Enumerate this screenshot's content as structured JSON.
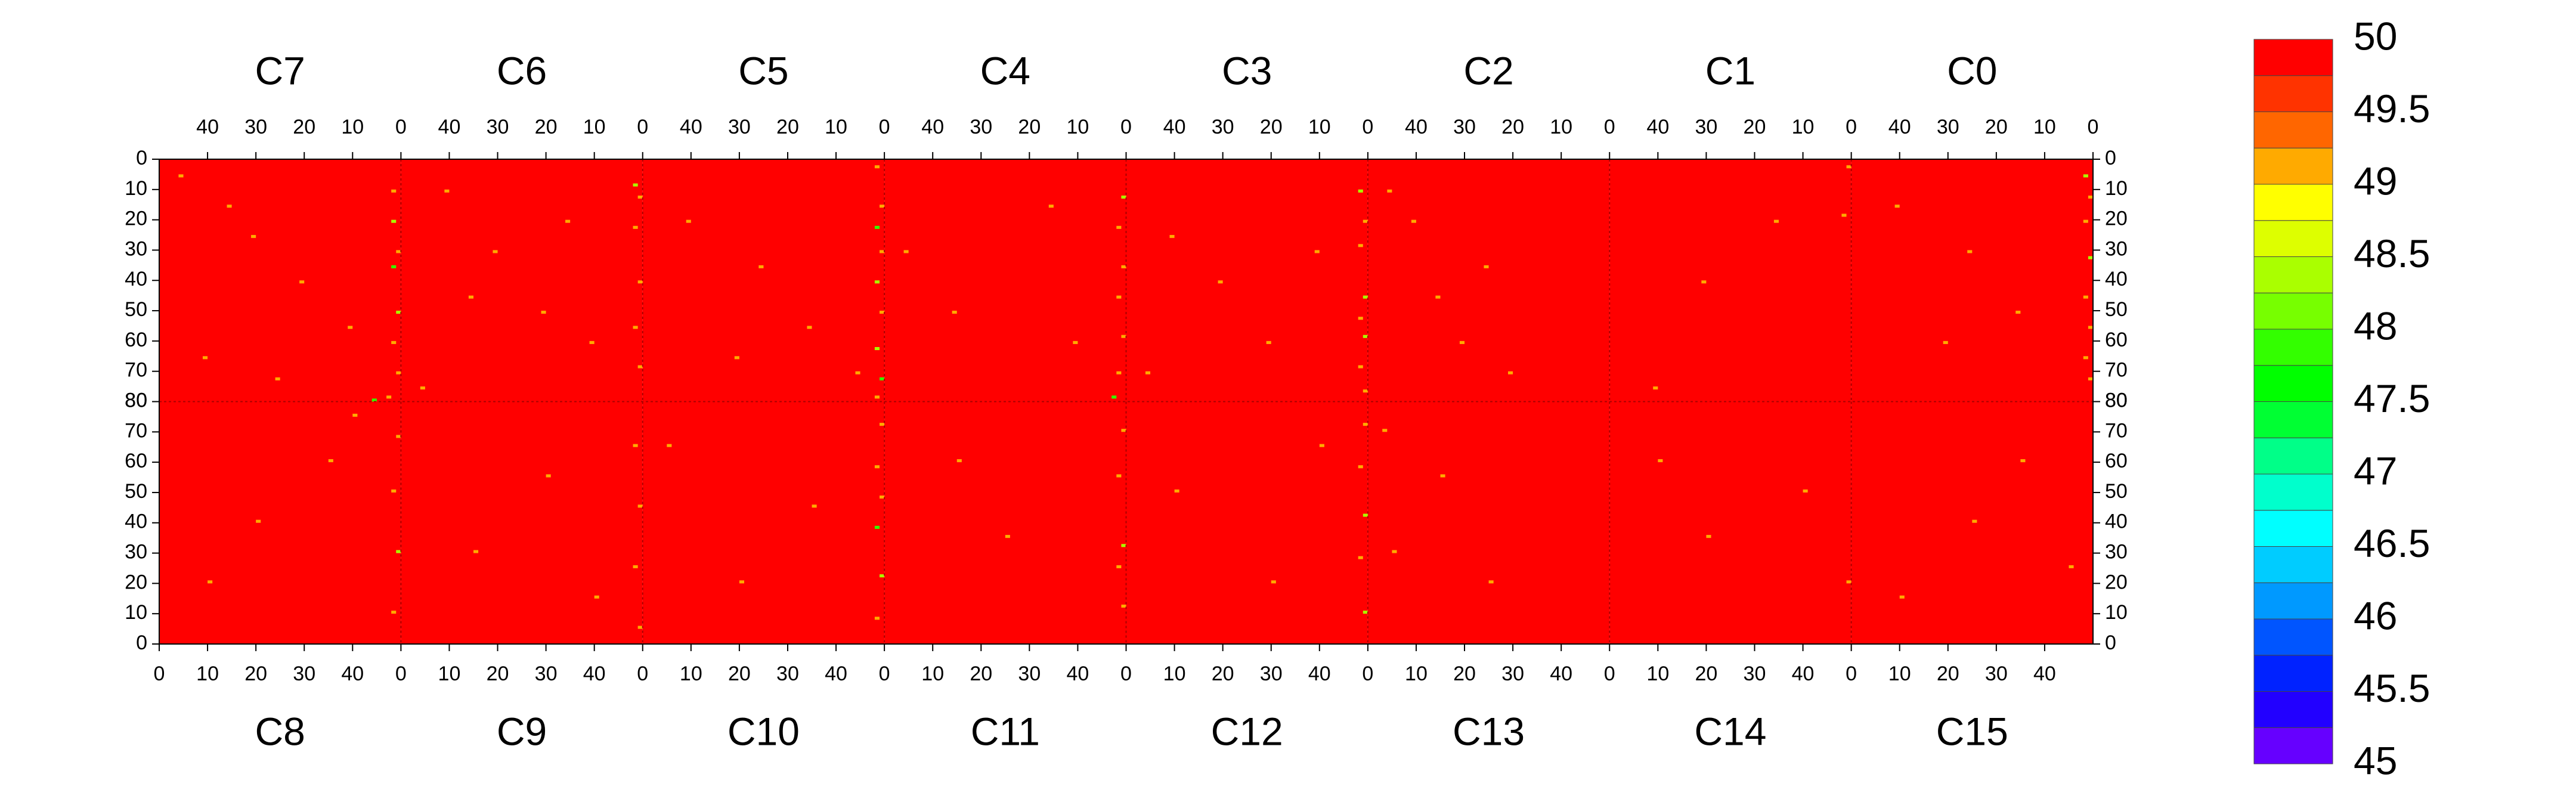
{
  "chart_data": {
    "type": "heatmap",
    "top_xlim": [
      50,
      0
    ],
    "top_xticks": [
      40,
      30,
      20,
      10,
      0
    ],
    "bottom_xlim": [
      0,
      50
    ],
    "bottom_xticks": [
      0,
      10,
      20,
      30,
      40
    ],
    "ylim": [
      0,
      80
    ],
    "yticks": [
      0,
      10,
      20,
      30,
      40,
      50,
      60,
      70,
      80
    ],
    "top_panels": [
      {
        "name": "C7",
        "base": 50,
        "cells": [
          [
            1,
            10,
            49.1
          ],
          [
            1,
            20,
            48.4
          ],
          [
            0,
            30,
            49.1
          ],
          [
            1,
            35,
            47.9
          ],
          [
            0,
            50,
            48.4
          ],
          [
            1,
            60,
            49.1
          ],
          [
            0,
            70,
            49.1
          ],
          [
            2,
            78,
            49.1
          ],
          [
            45,
            5,
            49.1
          ],
          [
            30,
            25,
            49.1
          ],
          [
            20,
            40,
            49.1
          ],
          [
            10,
            55,
            49.1
          ],
          [
            40,
            65,
            49.1
          ],
          [
            25,
            72,
            49.1
          ],
          [
            35,
            15,
            49.1
          ],
          [
            5,
            79,
            47.9
          ]
        ]
      },
      {
        "name": "C6",
        "base": 50,
        "cells": [
          [
            1,
            8,
            48.4
          ],
          [
            0,
            12,
            49.1
          ],
          [
            1,
            22,
            49.1
          ],
          [
            0,
            40,
            49.1
          ],
          [
            1,
            55,
            49.1
          ],
          [
            0,
            68,
            49.1
          ],
          [
            40,
            10,
            49.1
          ],
          [
            30,
            30,
            49.1
          ],
          [
            20,
            50,
            49.1
          ],
          [
            10,
            60,
            49.1
          ],
          [
            45,
            75,
            49.1
          ],
          [
            15,
            20,
            49.1
          ],
          [
            35,
            45,
            49.1
          ]
        ]
      },
      {
        "name": "C5",
        "base": 50,
        "cells": [
          [
            1,
            2,
            49.1
          ],
          [
            0,
            15,
            49.1
          ],
          [
            1,
            22,
            47.9
          ],
          [
            0,
            30,
            49.1
          ],
          [
            1,
            40,
            48.4
          ],
          [
            0,
            50,
            49.1
          ],
          [
            1,
            62,
            48.4
          ],
          [
            0,
            72,
            47.9
          ],
          [
            1,
            78,
            49.1
          ],
          [
            40,
            20,
            49.1
          ],
          [
            25,
            35,
            49.1
          ],
          [
            15,
            55,
            49.1
          ],
          [
            5,
            70,
            49.1
          ],
          [
            30,
            65,
            49.1
          ]
        ]
      },
      {
        "name": "C4",
        "base": 50,
        "cells": [
          [
            0,
            12,
            48.4
          ],
          [
            1,
            22,
            49.1
          ],
          [
            0,
            35,
            49.1
          ],
          [
            1,
            45,
            49.1
          ],
          [
            0,
            58,
            49.1
          ],
          [
            1,
            70,
            49.1
          ],
          [
            45,
            30,
            49.1
          ],
          [
            35,
            50,
            49.1
          ],
          [
            15,
            15,
            49.1
          ],
          [
            10,
            60,
            49.1
          ],
          [
            2,
            78,
            47.9
          ]
        ]
      },
      {
        "name": "C3",
        "base": 50,
        "cells": [
          [
            1,
            10,
            48.4
          ],
          [
            0,
            20,
            49.1
          ],
          [
            1,
            28,
            49.1
          ],
          [
            0,
            45,
            48.4
          ],
          [
            1,
            52,
            49.1
          ],
          [
            0,
            58,
            48.4
          ],
          [
            1,
            68,
            49.1
          ],
          [
            0,
            76,
            49.1
          ],
          [
            40,
            25,
            49.1
          ],
          [
            30,
            40,
            49.1
          ],
          [
            20,
            60,
            49.1
          ],
          [
            10,
            30,
            49.1
          ],
          [
            45,
            70,
            49.1
          ]
        ]
      },
      {
        "name": "C2",
        "base": 50,
        "cells": [
          [
            40,
            20,
            49.1
          ],
          [
            35,
            45,
            49.1
          ],
          [
            30,
            60,
            49.1
          ],
          [
            45,
            10,
            49.1
          ],
          [
            25,
            35,
            49.1
          ],
          [
            20,
            70,
            49.1
          ]
        ]
      },
      {
        "name": "C1",
        "base": 50,
        "cells": [
          [
            0,
            2,
            49.1
          ],
          [
            1,
            18,
            49.1
          ],
          [
            30,
            40,
            49.1
          ],
          [
            15,
            20,
            49.1
          ],
          [
            40,
            75,
            49.1
          ]
        ]
      },
      {
        "name": "C0",
        "base": 50,
        "cells": [
          [
            1,
            5,
            48.4
          ],
          [
            0,
            12,
            49.1
          ],
          [
            1,
            20,
            49.1
          ],
          [
            0,
            32,
            48.4
          ],
          [
            1,
            45,
            49.1
          ],
          [
            0,
            55,
            49.1
          ],
          [
            1,
            65,
            49.1
          ],
          [
            0,
            72,
            49.1
          ],
          [
            40,
            15,
            49.1
          ],
          [
            25,
            30,
            49.1
          ],
          [
            15,
            50,
            49.1
          ],
          [
            30,
            60,
            49.1
          ]
        ]
      }
    ],
    "bottom_panels": [
      {
        "name": "C8",
        "base": 50,
        "cells": [
          [
            48,
            10,
            49.1
          ],
          [
            49,
            30,
            48.4
          ],
          [
            48,
            50,
            49.1
          ],
          [
            49,
            68,
            49.1
          ],
          [
            20,
            40,
            49.1
          ],
          [
            35,
            60,
            49.1
          ],
          [
            10,
            20,
            49.1
          ],
          [
            40,
            75,
            49.1
          ]
        ]
      },
      {
        "name": "C9",
        "base": 50,
        "cells": [
          [
            49,
            5,
            49.1
          ],
          [
            48,
            25,
            49.1
          ],
          [
            49,
            45,
            49.1
          ],
          [
            48,
            65,
            49.1
          ],
          [
            15,
            30,
            49.1
          ],
          [
            30,
            55,
            49.1
          ],
          [
            40,
            15,
            49.1
          ]
        ]
      },
      {
        "name": "C10",
        "base": 50,
        "cells": [
          [
            48,
            8,
            49.1
          ],
          [
            49,
            22,
            48.4
          ],
          [
            48,
            38,
            47.9
          ],
          [
            49,
            48,
            49.1
          ],
          [
            48,
            58,
            49.1
          ],
          [
            49,
            72,
            49.1
          ],
          [
            20,
            20,
            49.1
          ],
          [
            35,
            45,
            49.1
          ],
          [
            5,
            65,
            49.1
          ]
        ]
      },
      {
        "name": "C11",
        "base": 50,
        "cells": [
          [
            49,
            12,
            49.1
          ],
          [
            48,
            25,
            49.1
          ],
          [
            49,
            32,
            48.4
          ],
          [
            48,
            55,
            49.1
          ],
          [
            49,
            70,
            49.1
          ],
          [
            25,
            35,
            49.1
          ],
          [
            15,
            60,
            49.1
          ]
        ]
      },
      {
        "name": "C12",
        "base": 50,
        "cells": [
          [
            49,
            10,
            48.4
          ],
          [
            48,
            28,
            49.1
          ],
          [
            49,
            42,
            48.4
          ],
          [
            48,
            58,
            49.1
          ],
          [
            49,
            72,
            49.1
          ],
          [
            10,
            50,
            49.1
          ],
          [
            30,
            20,
            49.1
          ],
          [
            40,
            65,
            49.1
          ]
        ]
      },
      {
        "name": "C13",
        "base": 50,
        "cells": [
          [
            5,
            30,
            49.1
          ],
          [
            15,
            55,
            49.1
          ],
          [
            25,
            20,
            49.1
          ],
          [
            3,
            70,
            49.1
          ]
        ]
      },
      {
        "name": "C14",
        "base": 50,
        "cells": [
          [
            49,
            20,
            49.1
          ],
          [
            40,
            50,
            49.1
          ],
          [
            20,
            35,
            49.1
          ],
          [
            10,
            60,
            49.1
          ]
        ]
      },
      {
        "name": "C15",
        "base": 50,
        "cells": [
          [
            10,
            15,
            49.1
          ],
          [
            25,
            40,
            49.1
          ],
          [
            35,
            60,
            49.1
          ],
          [
            45,
            25,
            49.1
          ]
        ]
      }
    ],
    "colorbar": {
      "levels": [
        45,
        45.25,
        45.5,
        45.75,
        46,
        46.25,
        46.5,
        46.75,
        47,
        47.25,
        47.5,
        47.75,
        48,
        48.25,
        48.5,
        48.75,
        49,
        49.25,
        49.5,
        49.75,
        50
      ],
      "colors": [
        "#6600ff",
        "#2200ff",
        "#0022ff",
        "#0055ff",
        "#0099ff",
        "#00ccff",
        "#00ffff",
        "#00ffcc",
        "#00ff88",
        "#00ff33",
        "#00ff00",
        "#33ff00",
        "#77ff00",
        "#aaff00",
        "#ddff00",
        "#ffff00",
        "#ffaa00",
        "#ff6600",
        "#ff3300",
        "#ff0000"
      ],
      "ticks": [
        45,
        45.5,
        46,
        46.5,
        47,
        47.5,
        48,
        48.5,
        49,
        49.5,
        50
      ]
    }
  }
}
